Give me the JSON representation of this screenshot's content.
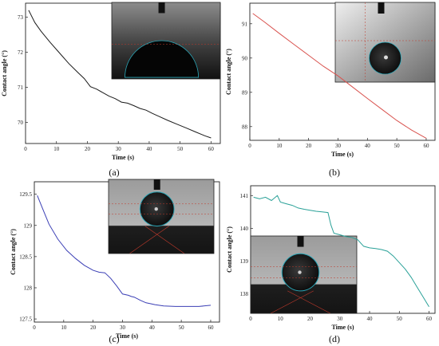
{
  "figure": {
    "colors": {
      "axis": "#222222",
      "inset_bg_light": "#d8d8d8",
      "inset_bg_dark": "#2b2b2b",
      "inset_guide": "#c0392b",
      "inset_circle": "#2aa7b8"
    }
  },
  "chart_data": [
    {
      "type": "line",
      "panel_label": "(a)",
      "xlabel": "Time (s)",
      "ylabel": "Contact angle (°)",
      "xlim": [
        0,
        63
      ],
      "ylim": [
        69.4,
        73.4
      ],
      "xticks": [
        0,
        10,
        20,
        30,
        40,
        50,
        60
      ],
      "yticks": [
        70,
        71,
        72,
        73
      ],
      "line_color": "#1a1a1a",
      "inset_style": "large-sessile-drop",
      "series": [
        {
          "x": [
            1,
            3,
            5,
            8,
            11,
            14,
            17,
            19,
            21,
            23,
            25,
            27,
            29,
            31,
            33,
            35,
            37,
            39,
            41,
            43,
            46,
            49,
            52,
            55,
            58,
            60
          ],
          "y": [
            73.2,
            72.85,
            72.6,
            72.28,
            71.98,
            71.68,
            71.42,
            71.25,
            71.02,
            70.95,
            70.85,
            70.75,
            70.68,
            70.58,
            70.55,
            70.48,
            70.4,
            70.35,
            70.26,
            70.18,
            70.06,
            69.95,
            69.84,
            69.73,
            69.62,
            69.56
          ]
        }
      ]
    },
    {
      "type": "line",
      "panel_label": "(b)",
      "xlabel": "Time (s)",
      "ylabel": "Contact angle (°)",
      "xlim": [
        0,
        63
      ],
      "ylim": [
        87.6,
        91.6
      ],
      "xticks": [
        0,
        10,
        20,
        30,
        40,
        50,
        60
      ],
      "yticks": [
        88,
        89,
        90,
        91
      ],
      "line_color": "#d9534f",
      "inset_style": "small-drop",
      "series": [
        {
          "x": [
            1,
            5,
            10,
            15,
            20,
            25,
            30,
            35,
            40,
            45,
            50,
            55,
            60
          ],
          "y": [
            91.3,
            91.05,
            90.72,
            90.4,
            90.08,
            89.76,
            89.48,
            89.15,
            88.82,
            88.5,
            88.18,
            87.9,
            87.66
          ]
        }
      ]
    },
    {
      "type": "line",
      "panel_label": "(c)",
      "xlabel": "Time (s)",
      "ylabel": "Contact angle (°)",
      "xlim": [
        0,
        63
      ],
      "ylim": [
        127.45,
        129.7
      ],
      "xticks": [
        0,
        10,
        20,
        30,
        40,
        50,
        60
      ],
      "yticks": [
        127.5,
        128.0,
        128.5,
        129.0,
        129.5
      ],
      "line_color": "#3b3fb5",
      "inset_style": "sphere-drop",
      "series": [
        {
          "x": [
            1,
            3,
            5,
            8,
            11,
            14,
            17,
            20,
            22,
            24,
            26,
            28,
            30,
            32,
            33,
            34,
            36,
            38,
            39,
            41,
            44,
            48,
            52,
            56,
            60
          ],
          "y": [
            129.48,
            129.25,
            129.02,
            128.78,
            128.6,
            128.47,
            128.36,
            128.28,
            128.25,
            128.24,
            128.15,
            128.03,
            127.9,
            127.88,
            127.86,
            127.85,
            127.8,
            127.76,
            127.75,
            127.73,
            127.71,
            127.7,
            127.7,
            127.7,
            127.72
          ]
        }
      ]
    },
    {
      "type": "line",
      "panel_label": "(d)",
      "xlabel": "Time (s)",
      "ylabel": "Contact angle (°)",
      "xlim": [
        0,
        62
      ],
      "ylim": [
        137.4,
        141.3
      ],
      "xticks": [
        0,
        10,
        20,
        30,
        40,
        50,
        60
      ],
      "yticks": [
        138,
        139,
        140,
        141
      ],
      "line_color": "#2aa198",
      "inset_style": "sphere-drop-left",
      "series": [
        {
          "x": [
            1,
            3,
            5,
            7,
            9,
            10,
            12,
            14,
            16,
            18,
            20,
            22,
            24,
            26,
            27,
            28,
            30,
            32,
            34,
            36,
            38,
            40,
            42,
            44,
            46,
            48,
            50,
            52,
            54,
            56,
            58,
            60
          ],
          "y": [
            140.95,
            140.9,
            140.95,
            140.85,
            141.0,
            140.8,
            140.75,
            140.7,
            140.62,
            140.58,
            140.55,
            140.52,
            140.5,
            140.48,
            140.1,
            139.85,
            139.8,
            139.75,
            139.72,
            139.65,
            139.45,
            139.4,
            139.38,
            139.35,
            139.3,
            139.15,
            138.95,
            138.75,
            138.5,
            138.2,
            137.9,
            137.6
          ]
        }
      ]
    }
  ]
}
